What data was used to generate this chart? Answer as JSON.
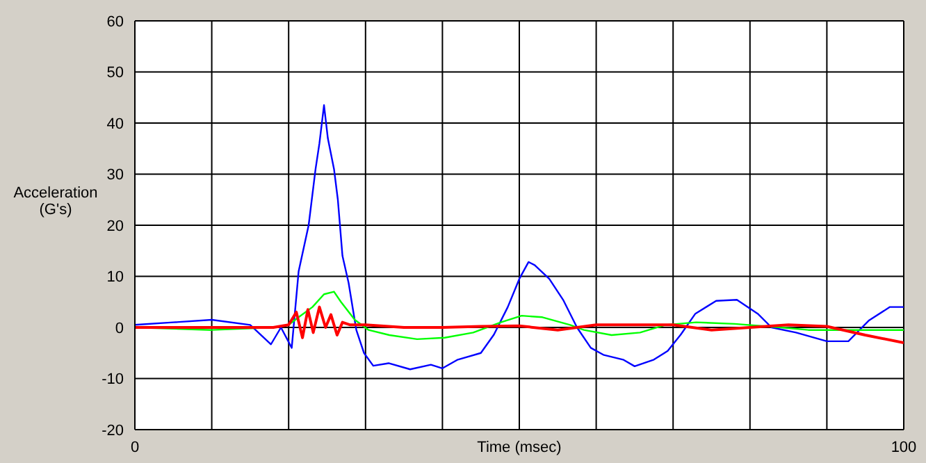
{
  "chart_data": {
    "type": "line",
    "xlabel": "Time (msec)",
    "ylabel": "Acceleration\n(G's)",
    "xlim": [
      0,
      100
    ],
    "ylim": [
      -20,
      60
    ],
    "xticks": [
      0,
      {
        "value": 10,
        "label": null
      },
      {
        "value": 20,
        "label": null
      },
      {
        "value": 30,
        "label": null
      },
      {
        "value": 40,
        "label": null
      },
      {
        "value": 50,
        "label": null
      },
      {
        "value": 60,
        "label": null
      },
      {
        "value": 70,
        "label": null
      },
      {
        "value": 80,
        "label": null
      },
      {
        "value": 90,
        "label": null
      },
      100
    ],
    "yticks": [
      -20,
      -10,
      0,
      10,
      20,
      30,
      40,
      50,
      60
    ],
    "grid": true,
    "marker": "none",
    "line_style": "solid",
    "series": [
      {
        "color": "#0000ff",
        "x": [
          0,
          5,
          10,
          15,
          17.7,
          19,
          20.4,
          21.3,
          22.6,
          23.5,
          24,
          24.6,
          25.1,
          25.9,
          26.4,
          27,
          27.8,
          28.8,
          29.8,
          31,
          33,
          35.8,
          38.5,
          40,
          42,
          45,
          46.7,
          48.5,
          50,
          51.2,
          52,
          53.9,
          55.7,
          57.5,
          59.3,
          61,
          63.5,
          65,
          67.5,
          69.3,
          71,
          72.9,
          75.6,
          78.3,
          81,
          82.8,
          86,
          90,
          92.8,
          95.5,
          98.2,
          100
        ],
        "values": [
          0.5,
          1,
          1.5,
          0.5,
          -3.3,
          0,
          -4,
          11,
          20,
          31,
          36,
          43.5,
          37,
          31,
          25,
          14,
          8.7,
          -0.5,
          -5,
          -7.5,
          -7,
          -8.2,
          -7.3,
          -8,
          -6.3,
          -5,
          -1.4,
          4,
          9.5,
          12.8,
          12.2,
          9.5,
          5.4,
          0,
          -4,
          -5.4,
          -6.3,
          -7.6,
          -6.3,
          -4.6,
          -1.4,
          2.7,
          5.2,
          5.4,
          2.7,
          0,
          -1,
          -2.7,
          -2.7,
          1.4,
          4,
          4
        ]
      },
      {
        "color": "#00ff00",
        "x": [
          0,
          10,
          18,
          20,
          21.3,
          23.1,
          24.6,
          25.9,
          26.8,
          28.6,
          30.4,
          33.1,
          36.7,
          40.3,
          44,
          47.6,
          50.3,
          53,
          56.6,
          58.4,
          62,
          65.7,
          69,
          73,
          78,
          84,
          87.6,
          94.8,
          100
        ],
        "values": [
          0,
          -0.5,
          0,
          0.5,
          2,
          4,
          6.5,
          7,
          5,
          1.5,
          -0.5,
          -1.5,
          -2.3,
          -2,
          -1,
          1,
          2.3,
          2,
          0.5,
          -0.5,
          -1.5,
          -1,
          0.5,
          1,
          0.7,
          0,
          -0.5,
          -0.5,
          -0.5
        ]
      },
      {
        "color": "#ff0000",
        "x": [
          0,
          10,
          18,
          20,
          21,
          21.8,
          22.5,
          23.2,
          24,
          24.8,
          25.5,
          26.3,
          27,
          28,
          30,
          35,
          40,
          45,
          50,
          55,
          60,
          65,
          70,
          75,
          80,
          85,
          90,
          95,
          100
        ],
        "values": [
          0,
          0,
          0,
          0.5,
          3,
          -2,
          3.5,
          -1,
          4,
          0,
          2.5,
          -1.5,
          1,
          0.5,
          0.5,
          0,
          0,
          0.2,
          0.3,
          -0.5,
          0.5,
          0.5,
          0.5,
          -0.5,
          0,
          0.5,
          0.2,
          -1.5,
          -3
        ]
      }
    ]
  }
}
